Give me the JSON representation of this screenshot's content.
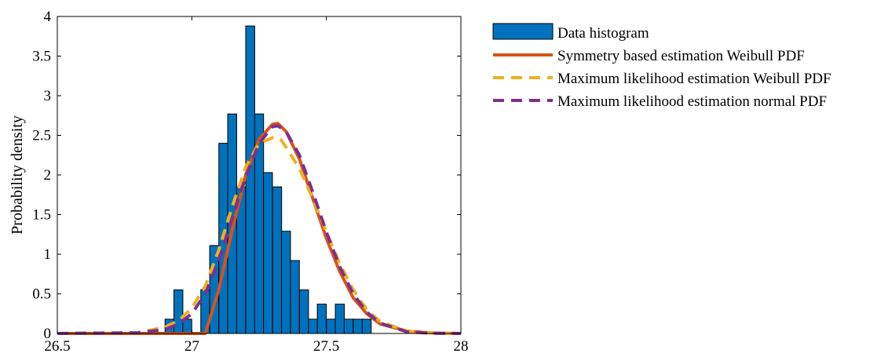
{
  "chart_data": {
    "type": "bar",
    "title": "",
    "xlabel": "",
    "ylabel": "Probability density",
    "xlim": [
      26.5,
      28
    ],
    "ylim": [
      0,
      4
    ],
    "xticks": [
      26.5,
      27,
      27.5,
      28
    ],
    "xtick_labels": [
      "26.5",
      "27",
      "27.5",
      "28"
    ],
    "yticks": [
      0,
      0.5,
      1,
      1.5,
      2,
      2.5,
      3,
      3.5,
      4
    ],
    "ytick_labels": [
      "0",
      "0.5",
      "1",
      "1.5",
      "2",
      "2.5",
      "3",
      "3.5",
      "4"
    ],
    "grid": false,
    "legend_position": "outside-right",
    "histogram": {
      "name": "Data histogram",
      "color": "#0072BD",
      "edge_color": "#000000",
      "bin_width": 0.0333,
      "bin_centers": [
        26.917,
        26.95,
        26.983,
        27.017,
        27.05,
        27.083,
        27.117,
        27.15,
        27.183,
        27.217,
        27.25,
        27.283,
        27.317,
        27.35,
        27.383,
        27.417,
        27.45,
        27.483,
        27.517,
        27.55,
        27.583,
        27.617,
        27.65,
        27.683,
        27.717,
        27.75,
        27.783
      ],
      "values": [
        0.18,
        0.55,
        0.18,
        0,
        0.55,
        1.11,
        2.4,
        2.77,
        1.85,
        3.88,
        2.77,
        2.03,
        1.85,
        1.29,
        0.92,
        0.55,
        0.18,
        0.37,
        0.18,
        0.37,
        0.18,
        0.18,
        0.18,
        0,
        0,
        0,
        0
      ]
    },
    "series": [
      {
        "name": "Symmetry based estimation Weibull PDF",
        "color": "#D95319",
        "style": "solid",
        "x": [
          26.5,
          27.0,
          27.05,
          27.1,
          27.15,
          27.2,
          27.25,
          27.3,
          27.32,
          27.35,
          27.4,
          27.45,
          27.5,
          27.55,
          27.6,
          27.65,
          27.7,
          27.8,
          27.9,
          28.0
        ],
        "y": [
          0,
          0,
          0,
          0.55,
          1.3,
          2.0,
          2.45,
          2.64,
          2.65,
          2.55,
          2.2,
          1.7,
          1.2,
          0.78,
          0.45,
          0.25,
          0.12,
          0.03,
          0.005,
          0
        ]
      },
      {
        "name": "Maximum likelihood estimation Weibull PDF",
        "color": "#EDB120",
        "style": "dashed",
        "x": [
          26.5,
          26.8,
          26.9,
          26.95,
          27.0,
          27.05,
          27.1,
          27.15,
          27.2,
          27.25,
          27.3,
          27.33,
          27.35,
          27.4,
          27.45,
          27.5,
          27.55,
          27.6,
          27.65,
          27.7,
          27.8,
          27.9,
          28.0
        ],
        "y": [
          0,
          0.01,
          0.08,
          0.16,
          0.32,
          0.6,
          1.05,
          1.6,
          2.1,
          2.4,
          2.47,
          2.45,
          2.35,
          2.08,
          1.7,
          1.28,
          0.88,
          0.55,
          0.3,
          0.15,
          0.03,
          0.004,
          0
        ]
      },
      {
        "name": "Maximum likelihood estimation normal PDF",
        "color": "#7E2F8E",
        "style": "dashed",
        "x": [
          26.5,
          26.8,
          26.9,
          26.95,
          27.0,
          27.05,
          27.1,
          27.15,
          27.2,
          27.25,
          27.3,
          27.32,
          27.35,
          27.4,
          27.45,
          27.5,
          27.55,
          27.6,
          27.65,
          27.7,
          27.8,
          27.9,
          28.0
        ],
        "y": [
          0,
          0.01,
          0.05,
          0.12,
          0.25,
          0.5,
          0.92,
          1.45,
          1.98,
          2.4,
          2.61,
          2.62,
          2.55,
          2.25,
          1.78,
          1.28,
          0.84,
          0.5,
          0.27,
          0.13,
          0.02,
          0.002,
          0
        ]
      }
    ]
  }
}
